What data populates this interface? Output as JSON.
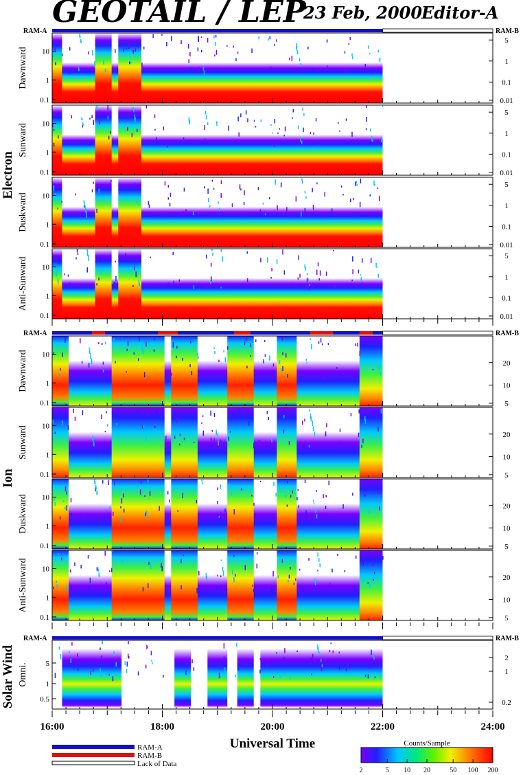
{
  "header": {
    "title": "GEOTAIL / LEP",
    "date": "23 Feb, 2000",
    "editor": "Editor-A"
  },
  "colors": {
    "ram_a": "#1010c8",
    "ram_b": "#e01010",
    "background": "#ffffff"
  },
  "chart_data": {
    "type": "heatmap",
    "x_axis": {
      "label": "Universal Time",
      "range_hours": [
        16,
        24
      ],
      "data_end_hours": 22,
      "tick_labels": [
        "16:00",
        "18:00",
        "20:00",
        "22:00",
        "24:00"
      ]
    },
    "groups": [
      {
        "name": "Electron",
        "ram_bar": {
          "left": "RAM-A",
          "right": "RAM-B"
        },
        "panels": [
          {
            "name": "Dawnward",
            "left_ticks": [
              "10",
              "1",
              "0.1"
            ],
            "right_ticks": [
              "5",
              "1",
              "0.1",
              "0.01"
            ]
          },
          {
            "name": "Sunward",
            "left_ticks": [
              "10",
              "1",
              "0.1"
            ],
            "right_ticks": [
              "5",
              "1",
              "0.1",
              "0.01"
            ]
          },
          {
            "name": "Duskward",
            "left_ticks": [
              "10",
              "1",
              "0.1"
            ],
            "right_ticks": [
              "5",
              "1",
              "0.1",
              "0.01"
            ]
          },
          {
            "name": "Anti-Sunward",
            "left_ticks": [
              "10",
              "1",
              "0.1"
            ],
            "right_ticks": [
              "5",
              "1",
              "0.1",
              "0.01"
            ]
          }
        ]
      },
      {
        "name": "Ion",
        "ram_bar": {
          "left": "RAM-A",
          "right": "RAM-B"
        },
        "panels": [
          {
            "name": "Dawnward",
            "left_ticks": [
              "10",
              "1",
              "0.1"
            ],
            "right_ticks": [
              "20",
              "10",
              "5"
            ]
          },
          {
            "name": "Sunward",
            "left_ticks": [
              "10",
              "1",
              "0.1"
            ],
            "right_ticks": [
              "20",
              "10",
              "5"
            ]
          },
          {
            "name": "Duskward",
            "left_ticks": [
              "10",
              "1",
              "0.1"
            ],
            "right_ticks": [
              "20",
              "10",
              "5"
            ]
          },
          {
            "name": "Anti-Sunward",
            "left_ticks": [
              "10",
              "1",
              "0.1"
            ],
            "right_ticks": [
              "20",
              "10",
              "5"
            ]
          }
        ]
      },
      {
        "name": "Solar Wind",
        "ram_bar": {
          "left": "RAM-A",
          "right": "RAM-B"
        },
        "panels": [
          {
            "name": "Omni.",
            "left_ticks": [
              "5",
              "1",
              "0.5"
            ],
            "right_ticks": [
              "2",
              "1",
              "0.2"
            ]
          }
        ]
      }
    ],
    "colorbar": {
      "title": "Counts/Sample",
      "tick_labels": [
        "2",
        "5",
        "10",
        "20",
        "50",
        "100",
        "200"
      ],
      "range": [
        2,
        200
      ],
      "scale": "log"
    }
  },
  "legend": {
    "items": [
      {
        "label": "RAM-A",
        "style": "blue"
      },
      {
        "label": "RAM-B",
        "style": "red"
      },
      {
        "label": "Lack of Data",
        "style": "hollow"
      }
    ]
  }
}
